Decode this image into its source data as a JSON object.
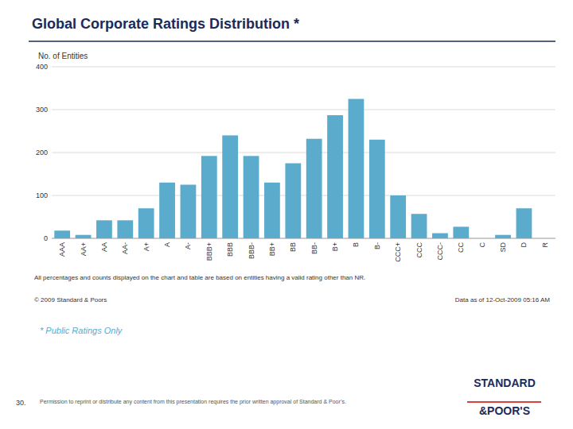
{
  "chart_data": {
    "type": "bar",
    "title": "Global Corporate Ratings Distribution *",
    "ylabel": "No. of Entities",
    "categories": [
      "AAA",
      "AA+",
      "AA",
      "AA-",
      "A+",
      "A",
      "A-",
      "BBB+",
      "BBB",
      "BBB-",
      "BB+",
      "BB",
      "BB-",
      "B+",
      "B",
      "B-",
      "CCC+",
      "CCC",
      "CCC-",
      "CC",
      "C",
      "SD",
      "D",
      "R"
    ],
    "values": [
      18,
      8,
      42,
      42,
      70,
      130,
      125,
      192,
      240,
      192,
      130,
      175,
      232,
      287,
      325,
      230,
      100,
      57,
      12,
      27,
      0,
      8,
      70,
      0
    ],
    "color": "#5aabcc",
    "ylim": [
      0,
      400
    ],
    "yticks": [
      0,
      100,
      200,
      300,
      400
    ],
    "grid": true,
    "annotations": [
      "All percentages and counts displayed on the chart and table are based on entities having a valid rating other than NR.",
      "© 2009 Standard & Poors",
      "Data as of 12-Oct-2009 05:16 AM",
      "* Public Ratings Only",
      "30.",
      "Permission to reprint or distribute any content from this presentation requires the prior written approval of Standard & Poor’s.",
      "STANDARD",
      "&POOR'S"
    ]
  }
}
